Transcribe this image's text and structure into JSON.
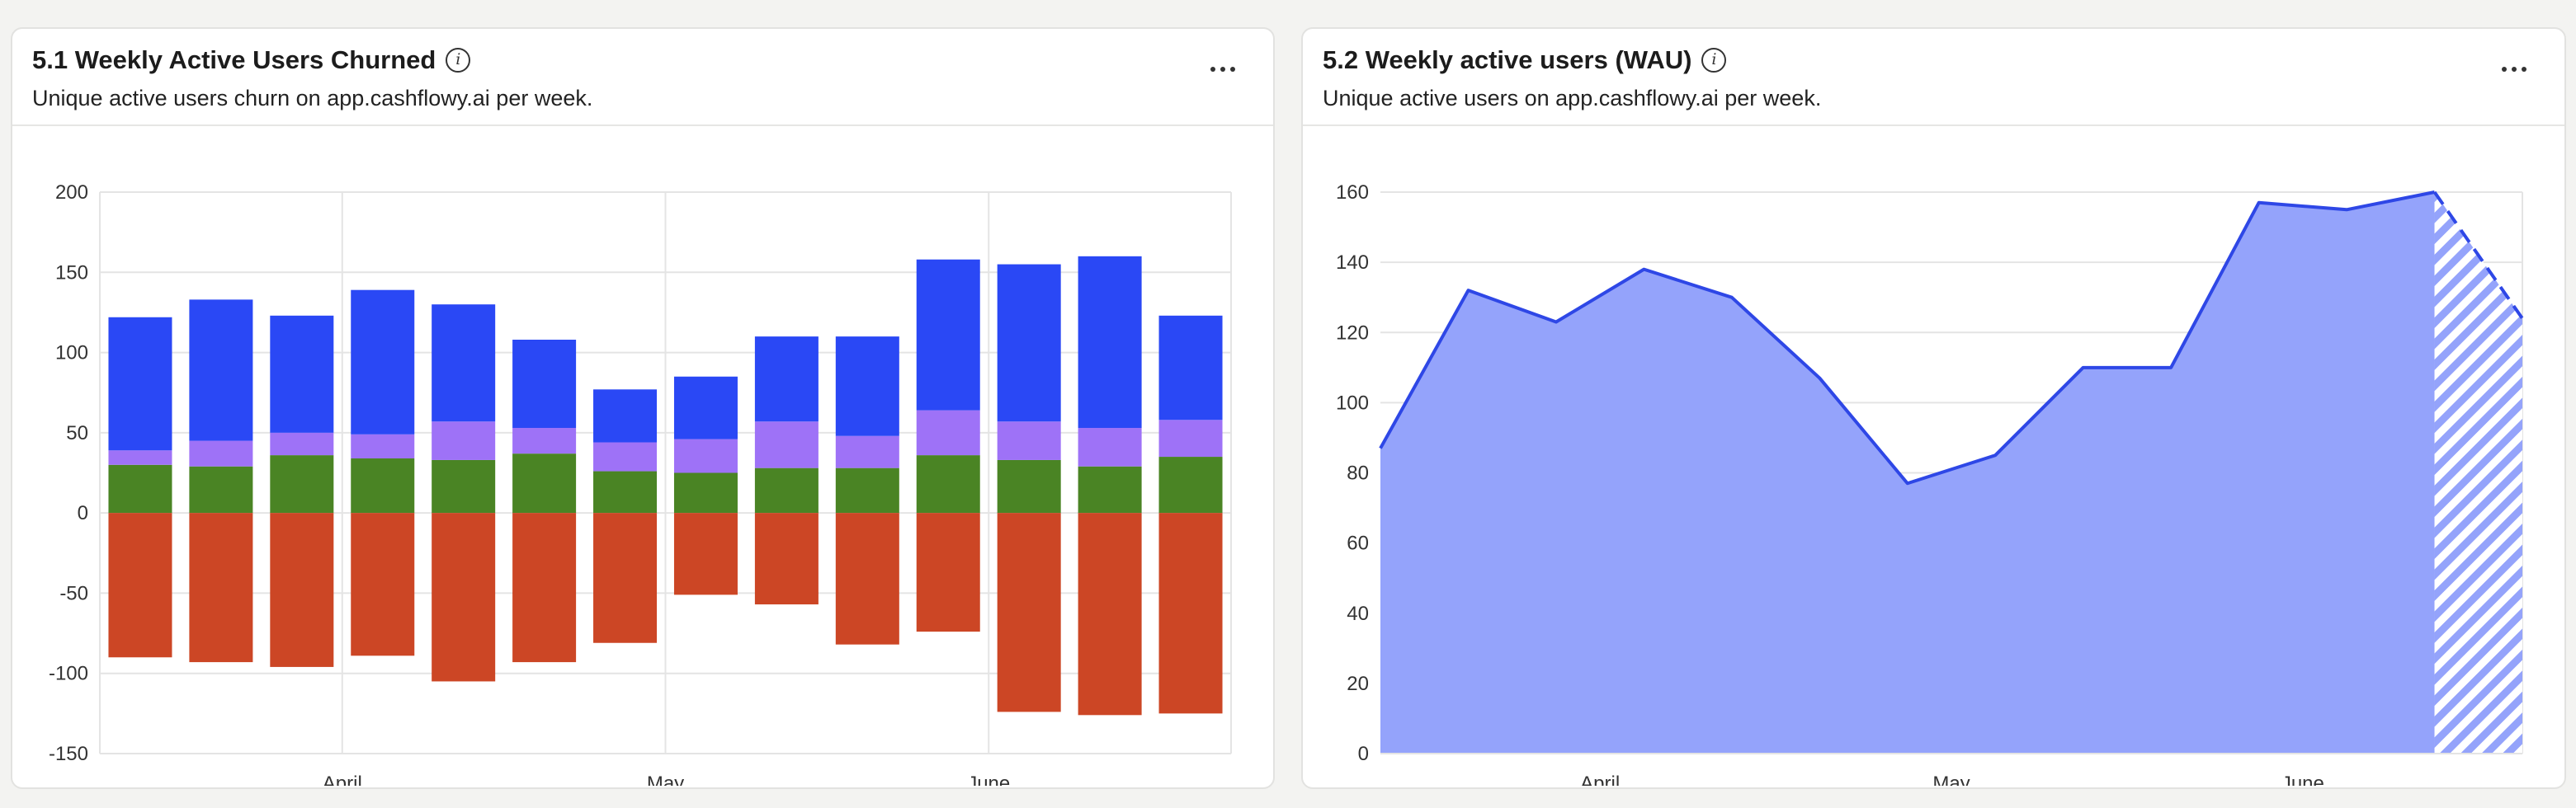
{
  "cards": [
    {
      "title": "5.1 Weekly Active Users Churned",
      "subtitle": "Unique active users churn on app.cashflowy.ai per week."
    },
    {
      "title": "5.2 Weekly active users (WAU)",
      "subtitle": "Unique active users on app.cashflowy.ai per week."
    }
  ],
  "chart_data": [
    {
      "type": "bar",
      "stacked": true,
      "title": "5.1 Weekly Active Users Churned",
      "grid": true,
      "ylim": [
        -150,
        200
      ],
      "yticks": [
        "200",
        "150",
        "100",
        "50",
        "0",
        "-50",
        "-100",
        "-150"
      ],
      "xticks": [
        "April",
        "May",
        "June"
      ],
      "xtick_positions": [
        2.5,
        6.5,
        10.5
      ],
      "series": [
        {
          "color": "#4a8424",
          "values": [
            30,
            29,
            36,
            34,
            33,
            37,
            26,
            25,
            28,
            28,
            36,
            33,
            29,
            35
          ]
        },
        {
          "color": "#9e72f7",
          "values": [
            9,
            16,
            14,
            15,
            24,
            16,
            18,
            21,
            29,
            20,
            28,
            24,
            24,
            23
          ]
        },
        {
          "color": "#2a48f5",
          "values": [
            83,
            88,
            73,
            90,
            73,
            55,
            33,
            39,
            53,
            62,
            94,
            98,
            107,
            65
          ]
        },
        {
          "color": "#cc4625",
          "values": [
            -90,
            -93,
            -96,
            -89,
            -105,
            -93,
            -81,
            -51,
            -57,
            -82,
            -74,
            -124,
            -126,
            -125
          ]
        }
      ]
    },
    {
      "type": "area",
      "title": "5.2 Weekly active users (WAU)",
      "grid": true,
      "ylim": [
        0,
        160
      ],
      "yticks": [
        "160",
        "140",
        "120",
        "100",
        "80",
        "60",
        "40",
        "20",
        "0"
      ],
      "xticks": [
        "April",
        "May",
        "June"
      ],
      "xtick_positions": [
        2.5,
        6.5,
        10.5
      ],
      "x": [
        0,
        1,
        2,
        3,
        4,
        5,
        6,
        7,
        8,
        9,
        10,
        11,
        12,
        13
      ],
      "values": [
        87,
        132,
        123,
        138,
        130,
        107,
        77,
        85,
        110,
        110,
        157,
        155,
        160,
        124
      ],
      "partial_from_index": 12,
      "line_color": "#2e47e6",
      "fill_color": "#94a3fb"
    }
  ]
}
